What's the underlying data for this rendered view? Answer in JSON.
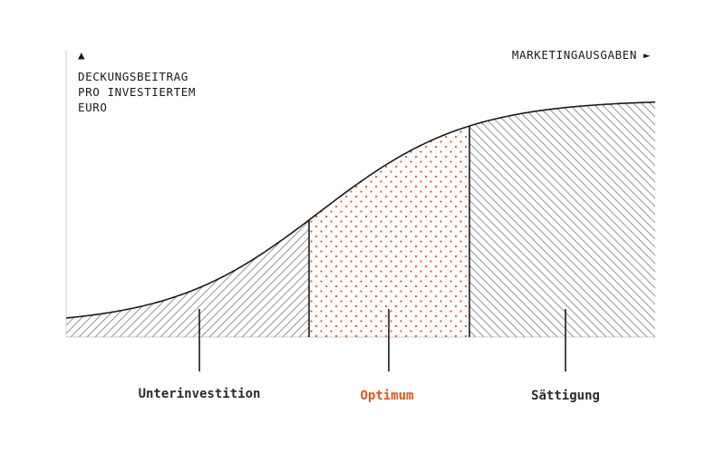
{
  "y_axis": {
    "arrow": "▲",
    "label_lines": [
      "DECKUNGSBEITRAG",
      "PRO INVESTIERTEM",
      "EURO"
    ]
  },
  "x_axis": {
    "label": "MARKETINGAUSGABEN",
    "arrow": "►"
  },
  "zones": [
    {
      "label": "Unterinvestition",
      "color": "#2b2b2b",
      "pattern": "hatch-dense"
    },
    {
      "label": "Optimum",
      "color": "#e8531c",
      "pattern": "dots"
    },
    {
      "label": "Sättigung",
      "color": "#2b2b2b",
      "pattern": "hatch"
    }
  ],
  "colors": {
    "curve": "#1a1a1a",
    "hatch": "#9a9a9a",
    "accent": "#e8531c",
    "axis": "#cfcfcf"
  }
}
